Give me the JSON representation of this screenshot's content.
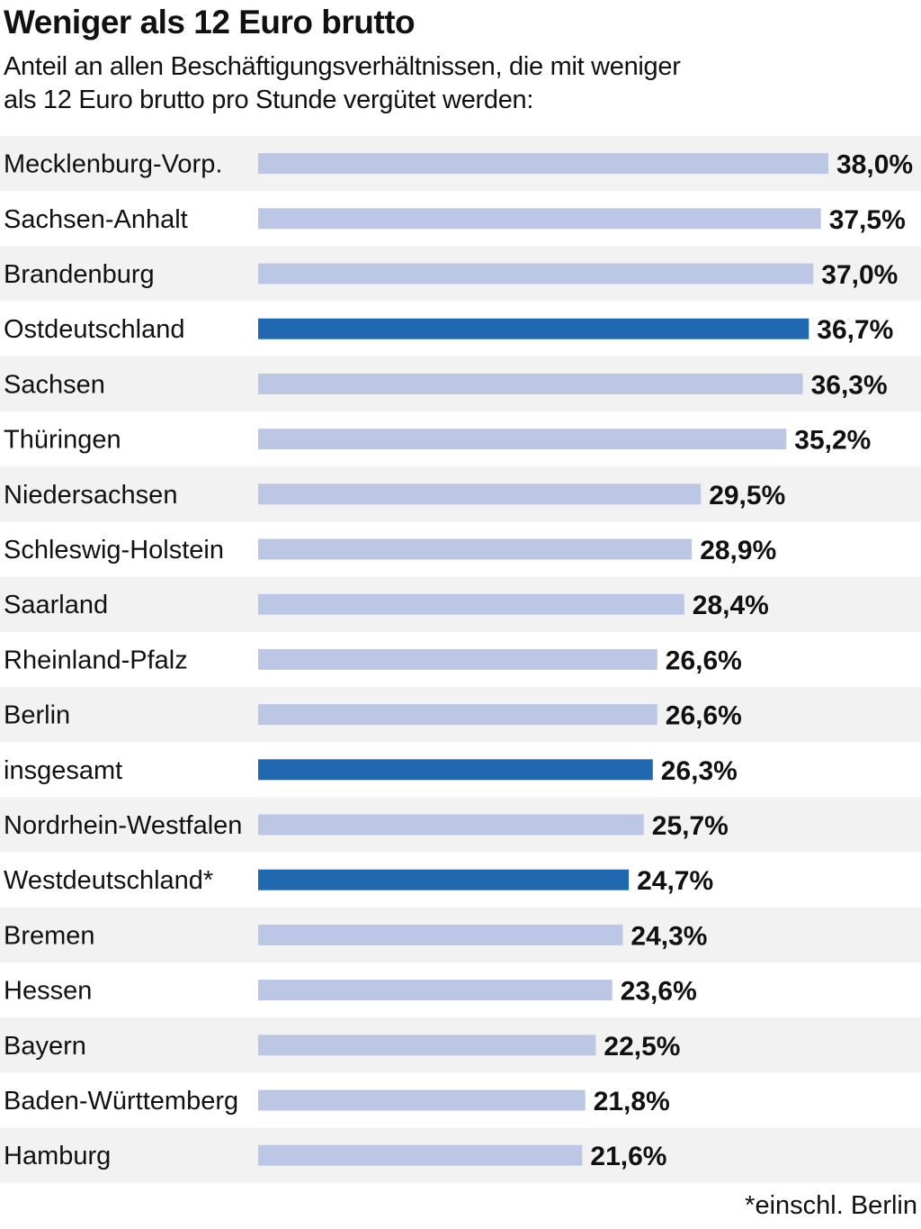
{
  "header": {
    "title": "Weniger als 12 Euro brutto",
    "subtitle": "Anteil an allen Beschäftigungsverhältnissen, die mit weniger\nals 12 Euro brutto pro Stunde vergütet werden:"
  },
  "footnote": "*einschl. Berlin",
  "colors": {
    "bar_regular": "#bcc7e6",
    "bar_highlight": "#2068b0",
    "row_shade": "#f2f2f2",
    "text": "#111111"
  },
  "chart_data": {
    "type": "bar",
    "orientation": "horizontal",
    "xlim": [
      0,
      38
    ],
    "grid": false,
    "legend": "none",
    "categories": [
      "Mecklenburg-Vorp.",
      "Sachsen-Anhalt",
      "Brandenburg",
      "Ostdeutschland",
      "Sachsen",
      "Thüringen",
      "Niedersachsen",
      "Schleswig-Holstein",
      "Saarland",
      "Rheinland-Pfalz",
      "Berlin",
      "insgesamt",
      "Nordrhein-Westfalen",
      "Westdeutschland*",
      "Bremen",
      "Hessen",
      "Bayern",
      "Baden-Württemberg",
      "Hamburg"
    ],
    "values": [
      38.0,
      37.5,
      37.0,
      36.7,
      36.3,
      35.2,
      29.5,
      28.9,
      28.4,
      26.6,
      26.6,
      26.3,
      25.7,
      24.7,
      24.3,
      23.6,
      22.5,
      21.8,
      21.6
    ],
    "value_labels": [
      "38,0%",
      "37,5%",
      "37,0%",
      "36,7%",
      "36,3%",
      "35,2%",
      "29,5%",
      "28,9%",
      "28,4%",
      "26,6%",
      "26,6%",
      "26,3%",
      "25,7%",
      "24,7%",
      "24,3%",
      "23,6%",
      "22,5%",
      "21,8%",
      "21,6%"
    ],
    "highlighted": [
      "Ostdeutschland",
      "insgesamt",
      "Westdeutschland*"
    ]
  }
}
